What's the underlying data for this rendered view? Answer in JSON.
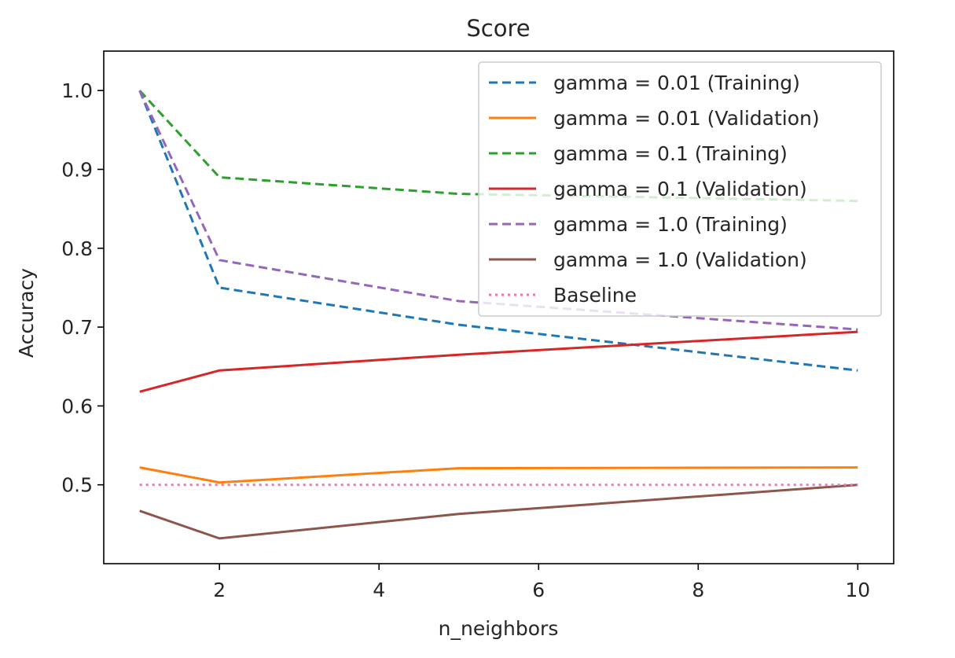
{
  "chart_data": {
    "type": "line",
    "title": "Score",
    "xlabel": "n_neighbors",
    "ylabel": "Accuracy",
    "xlim": [
      0.55,
      10.45
    ],
    "ylim": [
      0.4,
      1.05
    ],
    "xticks": [
      2,
      4,
      6,
      8,
      10
    ],
    "yticks": [
      0.5,
      0.6,
      0.7,
      0.8,
      0.9,
      1.0
    ],
    "xtick_labels": [
      "2",
      "4",
      "6",
      "8",
      "10"
    ],
    "ytick_labels": [
      "0.5",
      "0.6",
      "0.7",
      "0.8",
      "0.9",
      "1.0"
    ],
    "grid": false,
    "legend_position": "top-right",
    "x": [
      1,
      2,
      5,
      10
    ],
    "series": [
      {
        "name": "gamma = 0.01 (Training)",
        "values": [
          1.0,
          0.75,
          0.703,
          0.645
        ],
        "color": "#1f77b4",
        "style": "dashed"
      },
      {
        "name": "gamma = 0.01 (Validation)",
        "values": [
          0.522,
          0.503,
          0.521,
          0.522
        ],
        "color": "#ff7f0e",
        "style": "solid"
      },
      {
        "name": "gamma = 0.1 (Training)",
        "values": [
          1.0,
          0.89,
          0.869,
          0.86
        ],
        "color": "#2ca02c",
        "style": "dashed"
      },
      {
        "name": "gamma = 0.1 (Validation)",
        "values": [
          0.618,
          0.645,
          0.665,
          0.694
        ],
        "color": "#d62728",
        "style": "solid"
      },
      {
        "name": "gamma = 1.0 (Training)",
        "values": [
          1.0,
          0.785,
          0.733,
          0.697
        ],
        "color": "#9467bd",
        "style": "dashed"
      },
      {
        "name": "gamma = 1.0 (Validation)",
        "values": [
          0.467,
          0.432,
          0.463,
          0.5
        ],
        "color": "#8c564b",
        "style": "solid"
      },
      {
        "name": "Baseline",
        "values": [
          0.5,
          0.5,
          0.5,
          0.5
        ],
        "color": "#e377c2",
        "style": "dotted"
      }
    ]
  }
}
